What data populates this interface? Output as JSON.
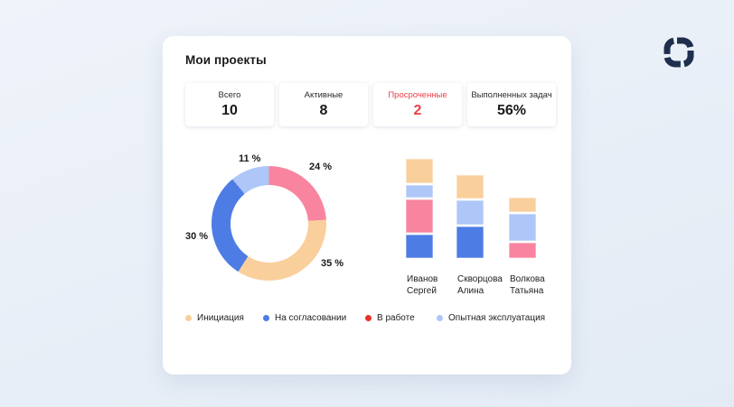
{
  "brand": {
    "logo_color": "#1E2F4D"
  },
  "card": {
    "title": "Мои проекты"
  },
  "stats": {
    "items": [
      {
        "label": "Всего",
        "value": "10"
      },
      {
        "label": "Активные",
        "value": "8"
      },
      {
        "label": "Просроченные",
        "value": "2",
        "color": "#E8404A"
      },
      {
        "label": "Выполненных задач",
        "value": "56%"
      }
    ]
  },
  "legend": {
    "items": [
      {
        "label": "Инициация",
        "color": "#F9CF9C"
      },
      {
        "label": "На согласовании",
        "color": "#4D7CE4"
      },
      {
        "label": "В работе",
        "color": "#E5332C"
      },
      {
        "label": "Опытная эксплуатация",
        "color": "#AEC6F8"
      }
    ]
  },
  "chart_data": [
    {
      "type": "pie",
      "donut": true,
      "legend_position": "bottom",
      "segments": [
        {
          "label": "В работе",
          "value": 24,
          "display": "24 %",
          "color": "#F8849F"
        },
        {
          "label": "Инициация",
          "value": 35,
          "display": "35 %",
          "color": "#F9CF9C"
        },
        {
          "label": "На согласовании",
          "value": 30,
          "display": "30 %",
          "color": "#4D7CE4"
        },
        {
          "label": "Опытная эксплуатация",
          "value": 11,
          "display": "11 %",
          "color": "#AEC6F8"
        }
      ]
    },
    {
      "type": "bar",
      "stacked": true,
      "categories": [
        "Иванов Сергей",
        "Скворцова Алина",
        "Волкова Татьяна"
      ],
      "series": [
        {
          "name": "На согласовании",
          "color": "#4D7CE4",
          "values": [
            26,
            35,
            0
          ]
        },
        {
          "name": "В работе",
          "color": "#F8849F",
          "values": [
            37,
            0,
            17
          ]
        },
        {
          "name": "Опытная эксплуатация",
          "color": "#AEC6F8",
          "values": [
            14,
            27,
            30
          ]
        },
        {
          "name": "Инициация",
          "color": "#F9CF9C",
          "values": [
            27,
            26,
            16
          ]
        }
      ],
      "unit": "estimated-px",
      "grid": false
    }
  ]
}
